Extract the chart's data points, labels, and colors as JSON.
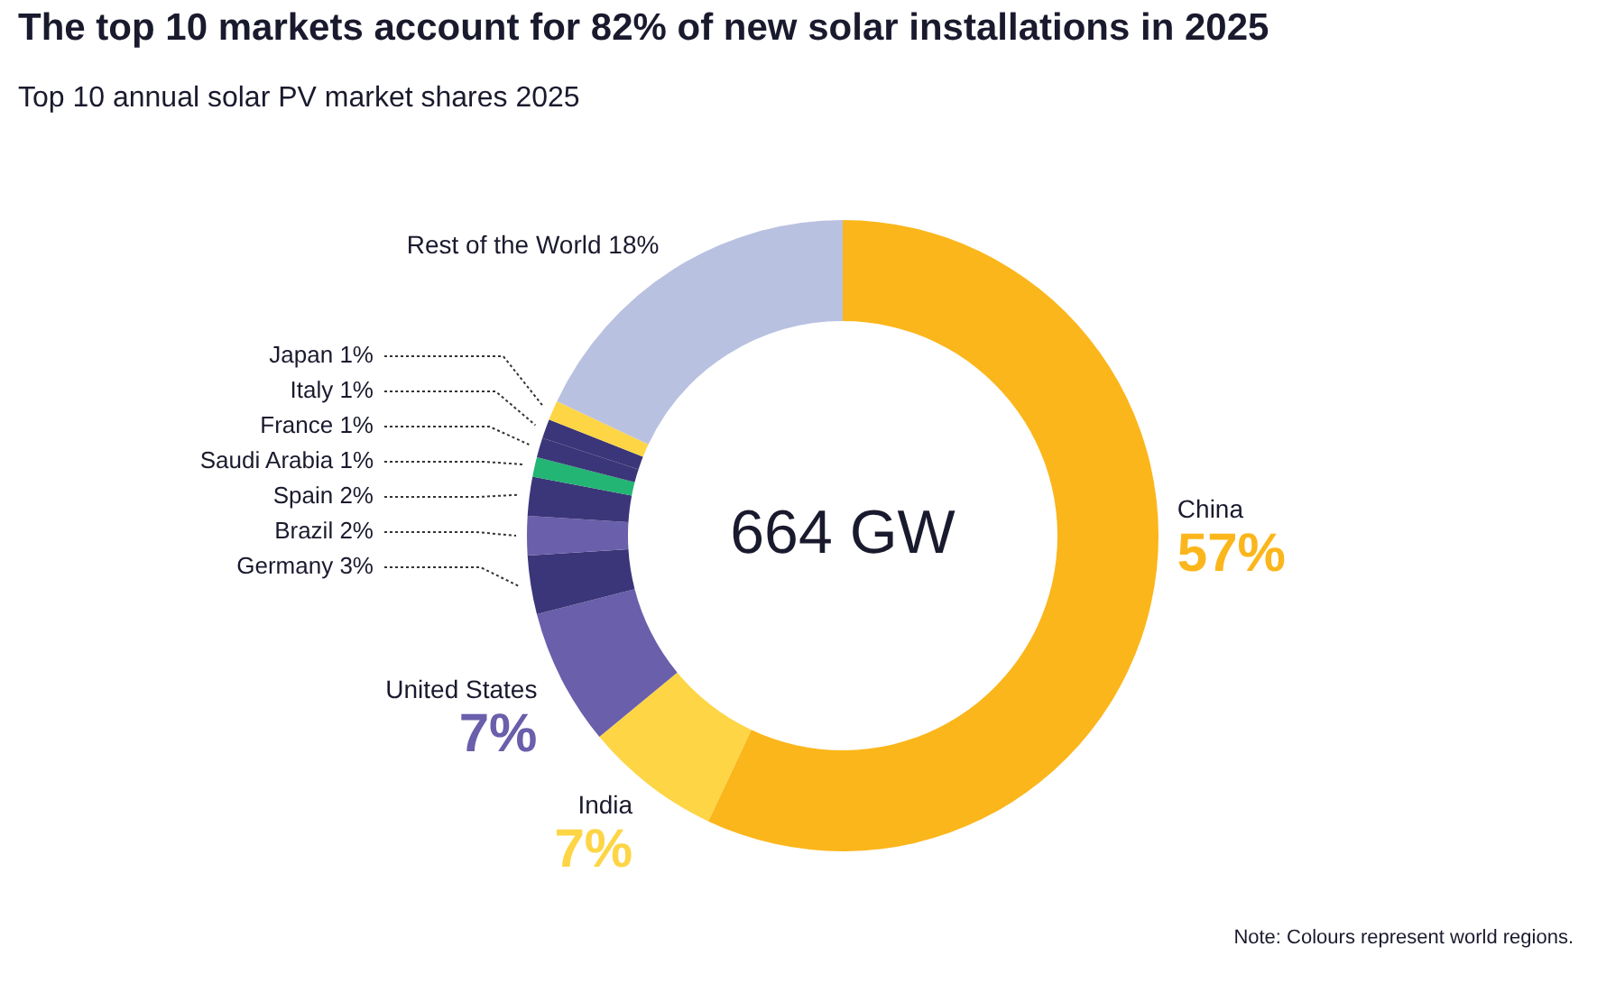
{
  "chart_data": {
    "type": "donut",
    "title": "The top 10 markets account for 82% of new solar installations in 2025",
    "subtitle": "Top 10 annual solar PV market shares 2025",
    "categories": [
      "China",
      "India",
      "United States",
      "Germany",
      "Brazil",
      "Spain",
      "Saudi Arabia",
      "France",
      "Italy",
      "Japan",
      "Rest of the World"
    ],
    "values": [
      57,
      7,
      7,
      3,
      2,
      2,
      1,
      1,
      1,
      1,
      18
    ],
    "value_labels": [
      "57%",
      "7%",
      "7%",
      "3%",
      "2%",
      "2%",
      "1%",
      "1%",
      "1%",
      "1%",
      "18%"
    ],
    "colors": [
      "#fbb61b",
      "#fdd545",
      "#6a5fab",
      "#3b3679",
      "#6a5fab",
      "#3b3679",
      "#22b573",
      "#3b3679",
      "#3b3679",
      "#fdd545",
      "#b9c1e1"
    ],
    "annotations": [
      "664 GW",
      "Note: Colours represent world regions."
    ],
    "legend": false
  }
}
